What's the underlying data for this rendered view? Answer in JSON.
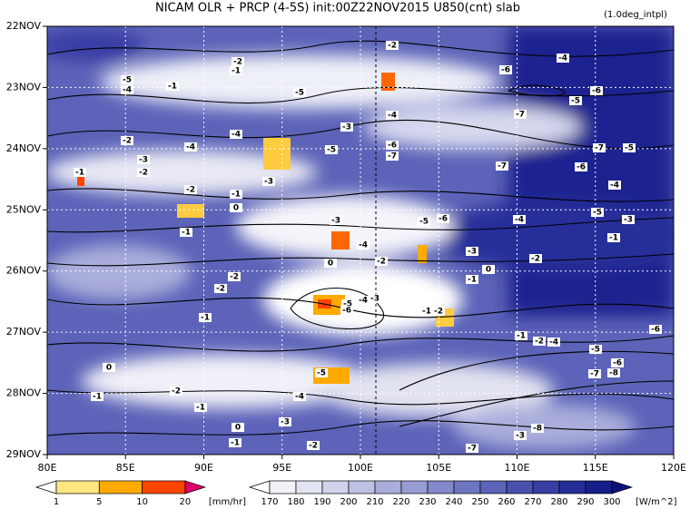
{
  "title": "NICAM  OLR + PRCP (4-5S) init:00Z22NOV2015 U850(cnt) slab",
  "note": "(1.0deg_intpl)",
  "chart_data": {
    "type": "hovmoller",
    "xlim": [
      80,
      120
    ],
    "xticks": [
      {
        "value": 80,
        "label": "80E"
      },
      {
        "value": 85,
        "label": "85E"
      },
      {
        "value": 90,
        "label": "90E"
      },
      {
        "value": 95,
        "label": "95E"
      },
      {
        "value": 100,
        "label": "100E"
      },
      {
        "value": 105,
        "label": "105E"
      },
      {
        "value": 110,
        "label": "110E"
      },
      {
        "value": 115,
        "label": "115E"
      },
      {
        "value": 120,
        "label": "120E"
      }
    ],
    "ylim": [
      22,
      29
    ],
    "yticks": [
      {
        "value": 22,
        "label": "22NOV"
      },
      {
        "value": 23,
        "label": "23NOV"
      },
      {
        "value": 24,
        "label": "24NOV"
      },
      {
        "value": 25,
        "label": "25NOV"
      },
      {
        "value": 26,
        "label": "26NOV"
      },
      {
        "value": 27,
        "label": "27NOV"
      },
      {
        "value": 28,
        "label": "28NOV"
      },
      {
        "value": 29,
        "label": "29NOV"
      }
    ],
    "contour_labels": [
      "-2",
      "-5",
      "-4",
      "-1",
      "-1",
      "-2",
      "-5",
      "-4",
      "-3",
      "-4",
      "-2",
      "-4",
      "-3",
      "-2",
      "-5",
      "-6",
      "-7",
      "-7",
      "-6",
      "-7",
      "-5",
      "-4",
      "-6",
      "-4",
      "-6",
      "-5",
      "-7",
      "-1",
      "-2",
      "-1",
      "0",
      "-3",
      "-1",
      "-3",
      "-5",
      "-6",
      "-4",
      "-5",
      "-3",
      "-1",
      "-4",
      "-3",
      "-2",
      "-1",
      "0",
      "0",
      "-2",
      "-2",
      "-2",
      "-3",
      "-4",
      "-5",
      "-6",
      "-1",
      "-2",
      "-1",
      "-1",
      "-2",
      "-4",
      "-6",
      "-5",
      "-6",
      "-7",
      "-8",
      "0",
      "-1",
      "-2",
      "-1",
      "0",
      "-1",
      "-2",
      "-3",
      "-4",
      "-5",
      "-3",
      "-8",
      "-7"
    ],
    "precip_bar": {
      "levels": [
        1,
        5,
        10,
        20
      ],
      "unit": "[mm/hr]",
      "colors": [
        "#ffffff",
        "#ffe680",
        "#ffaa00",
        "#ff4400",
        "#e0006a"
      ]
    },
    "olr_bar": {
      "levels": [
        170,
        180,
        190,
        200,
        210,
        220,
        230,
        240,
        250,
        260,
        270,
        280,
        290,
        300
      ],
      "unit": "[W/m^2]",
      "colors": [
        "#ffffff",
        "#f2f2f8",
        "#e2e3f0",
        "#d0d2ea",
        "#bec1e3",
        "#aaaedb",
        "#979cd3",
        "#8389ca",
        "#6f76c1",
        "#5c63b8",
        "#4950ae",
        "#373ea4",
        "#262d99",
        "#171e8c",
        "#0c127c"
      ]
    }
  }
}
